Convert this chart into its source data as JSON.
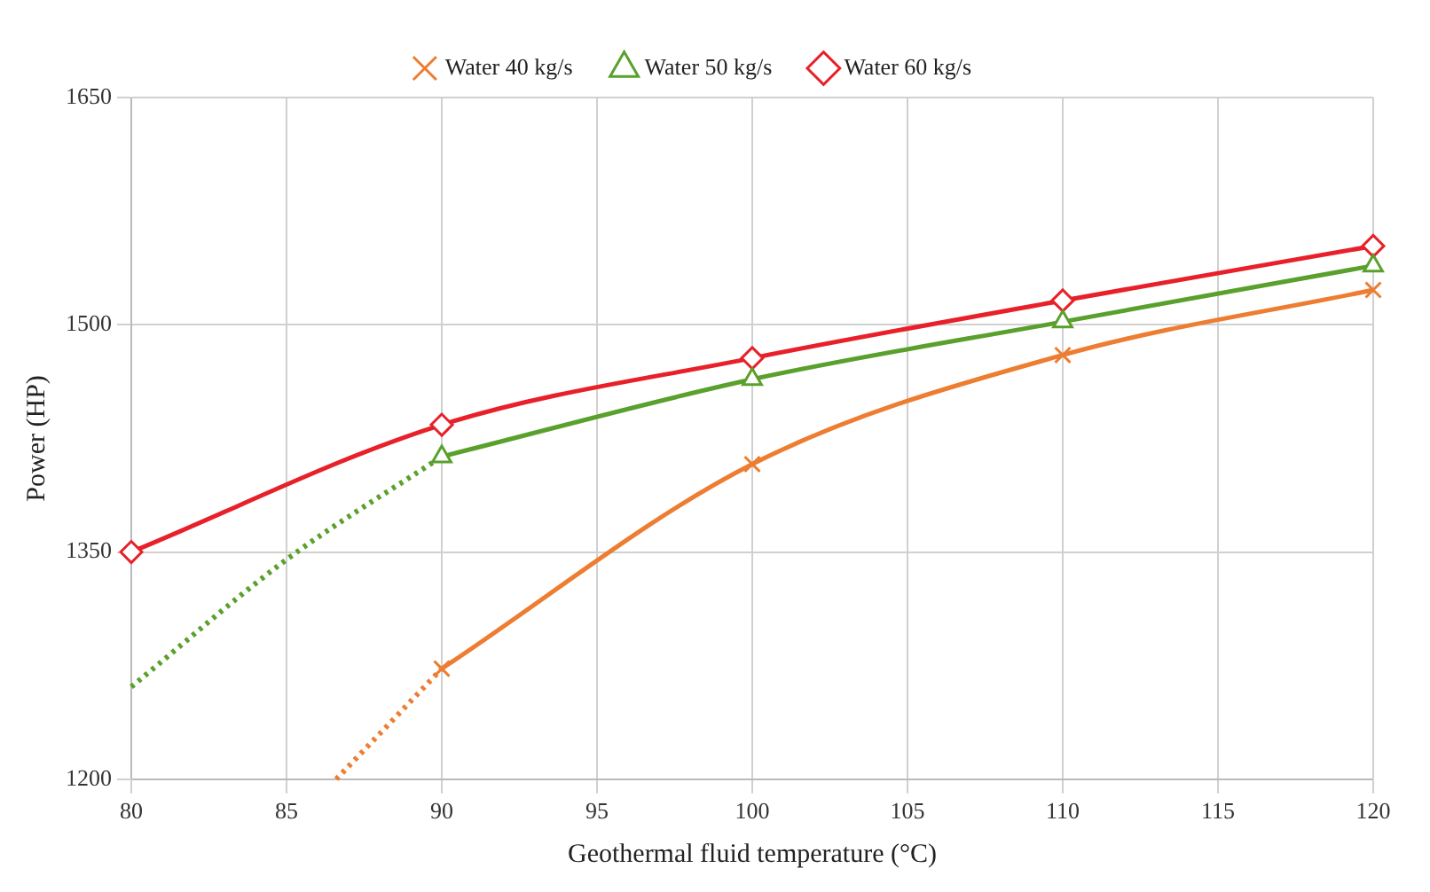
{
  "chart_data": {
    "type": "line",
    "xlabel": "Geothermal fluid temperature (°C)",
    "ylabel": "Power (HP)",
    "xlim": [
      80,
      120
    ],
    "xticks": [
      80,
      85,
      90,
      95,
      100,
      105,
      110,
      115,
      120
    ],
    "ylim": [
      1200,
      1650
    ],
    "yticks": [
      1200,
      1350,
      1500,
      1650
    ],
    "grid": true,
    "legend": "top",
    "series": [
      {
        "name": "Water 40 kg/s",
        "color": "#ed7d31",
        "x": [
          90,
          100,
          110,
          120
        ],
        "values": [
          1273,
          1408,
          1480,
          1523
        ],
        "marker": "cross",
        "line_style": "solid"
      },
      {
        "name": "Water 50 kg/s",
        "color": "#5aa02c",
        "x": [
          90,
          100,
          110,
          120
        ],
        "values": [
          1413,
          1464,
          1502,
          1539
        ],
        "marker": "triangle",
        "line_style": "solid"
      },
      {
        "name": "Water 60 kg/s",
        "color": "#e8202a",
        "x": [
          80,
          90,
          100,
          110,
          120
        ],
        "values": [
          1350,
          1434,
          1478,
          1516,
          1552
        ],
        "marker": "diamond",
        "line_style": "solid"
      },
      {
        "color": "#ed7d31",
        "x": [
          86.6,
          88,
          90
        ],
        "values": [
          1200,
          1230,
          1273
        ],
        "marker": "none",
        "line_style": "dotted"
      },
      {
        "color": "#5aa02c",
        "x": [
          80,
          85,
          90
        ],
        "values": [
          1261,
          1345,
          1413
        ],
        "marker": "none",
        "line_style": "dotted"
      }
    ]
  }
}
